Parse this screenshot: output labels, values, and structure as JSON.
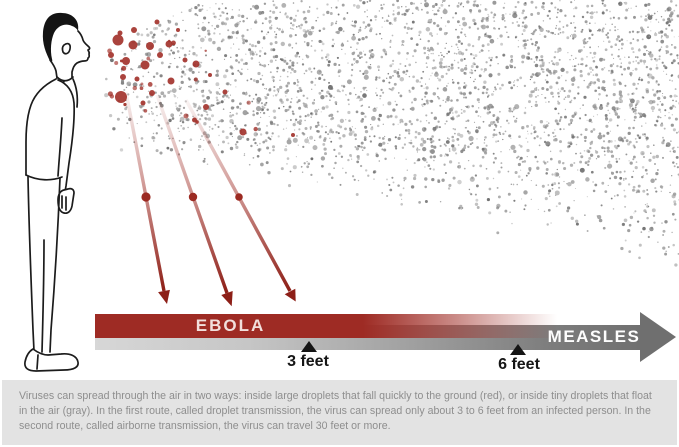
{
  "bar": {
    "ebola_label": "EBOLA",
    "measles_label": "MEASLES"
  },
  "markers": [
    {
      "label": "3 feet"
    },
    {
      "label": "6 feet"
    }
  ],
  "caption": "Viruses can spread through the air in two ways: inside large droplets that fall quickly to the ground (red), or inside tiny droplets that float in the air (gray). In the first route, called droplet transmission, the virus can spread only about 3 to 6 feet from an infected person. In the second route, called airborne transmission, the virus can travel 30 feet or more.",
  "colors": {
    "droplet_red": "#a3332c",
    "arrow_red": "#9c261e",
    "aerosol_gray": "#7f7f7f",
    "ebola_bar_red": "#9e2b24",
    "measles_bar_gray": "#6f6f6f",
    "marker_black": "#151515",
    "caption_bg": "#e3e3e3",
    "caption_text": "#8e8e8e"
  }
}
